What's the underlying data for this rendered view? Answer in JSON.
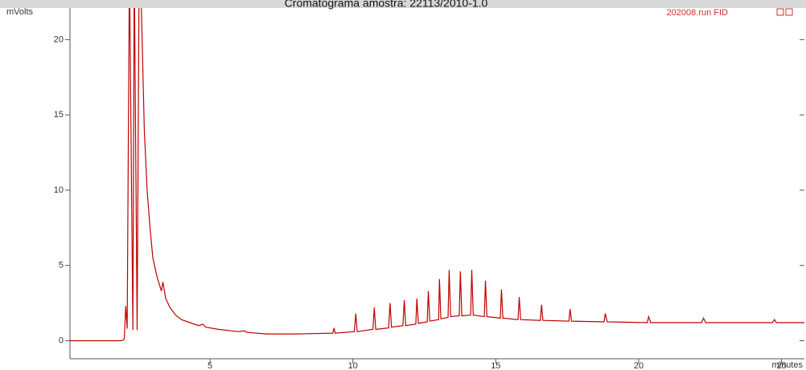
{
  "chart_data": {
    "type": "line",
    "title": "Cromatograma amostra: 22113/2010-1.0",
    "subtitle": "202008.run FID",
    "y_label": "mVolts",
    "x_label": "minutes",
    "xlim": [
      0.1,
      25.8
    ],
    "ylim": [
      -1.2,
      22.1
    ],
    "xticks": [
      5,
      10,
      15,
      20,
      25
    ],
    "yticks": [
      0,
      5,
      10,
      15,
      20
    ],
    "series": [
      {
        "color": "#c00000",
        "x": [
          0.1,
          1.9,
          2.0,
          2.05,
          2.1,
          2.18,
          2.3,
          2.35,
          2.45,
          2.52,
          2.6,
          2.7,
          2.8,
          2.9,
          3.0,
          3.15,
          3.3,
          3.35,
          3.45,
          3.6,
          3.8,
          4.0,
          4.3,
          4.6,
          4.75,
          4.85,
          5.3,
          6,
          6.2,
          6.3,
          7,
          8,
          9.3,
          9.34,
          9.38,
          10.05,
          10.1,
          10.15,
          10.7,
          10.75,
          10.8,
          11.25,
          11.3,
          11.35,
          11.75,
          11.8,
          11.85,
          12.2,
          12.24,
          12.29,
          12.6,
          12.64,
          12.69,
          13.0,
          13.03,
          13.08,
          13.33,
          13.37,
          13.42,
          13.72,
          13.76,
          13.81,
          14.12,
          14.16,
          14.21,
          14.6,
          14.64,
          14.69,
          15.16,
          15.2,
          15.25,
          15.78,
          15.82,
          15.87,
          16.56,
          16.6,
          16.65,
          17.56,
          17.6,
          17.65,
          18.79,
          18.83,
          18.9,
          20.3,
          20.35,
          20.42,
          22.2,
          22.27,
          22.35,
          24.68,
          24.75,
          24.82,
          25.8
        ],
        "values": [
          0,
          0,
          0.1,
          2.3,
          0.8,
          25,
          0.7,
          25,
          0.7,
          25,
          22,
          14,
          10,
          7.5,
          5.5,
          4.2,
          3.3,
          3.9,
          2.8,
          2.2,
          1.7,
          1.4,
          1.2,
          1.0,
          1.1,
          0.9,
          0.75,
          0.6,
          0.65,
          0.55,
          0.45,
          0.45,
          0.5,
          0.85,
          0.5,
          0.6,
          1.8,
          0.6,
          0.75,
          2.2,
          0.75,
          0.85,
          2.5,
          0.9,
          1.0,
          2.7,
          1.0,
          1.1,
          2.8,
          1.15,
          1.25,
          3.3,
          1.3,
          1.4,
          4.1,
          1.45,
          1.55,
          4.7,
          1.6,
          1.65,
          4.6,
          1.65,
          1.7,
          4.7,
          1.7,
          1.6,
          4.0,
          1.6,
          1.5,
          3.4,
          1.5,
          1.4,
          2.9,
          1.4,
          1.35,
          2.4,
          1.35,
          1.3,
          2.1,
          1.3,
          1.25,
          1.8,
          1.25,
          1.2,
          1.6,
          1.2,
          1.2,
          1.5,
          1.2,
          1.2,
          1.4,
          1.2,
          1.2
        ]
      }
    ]
  }
}
